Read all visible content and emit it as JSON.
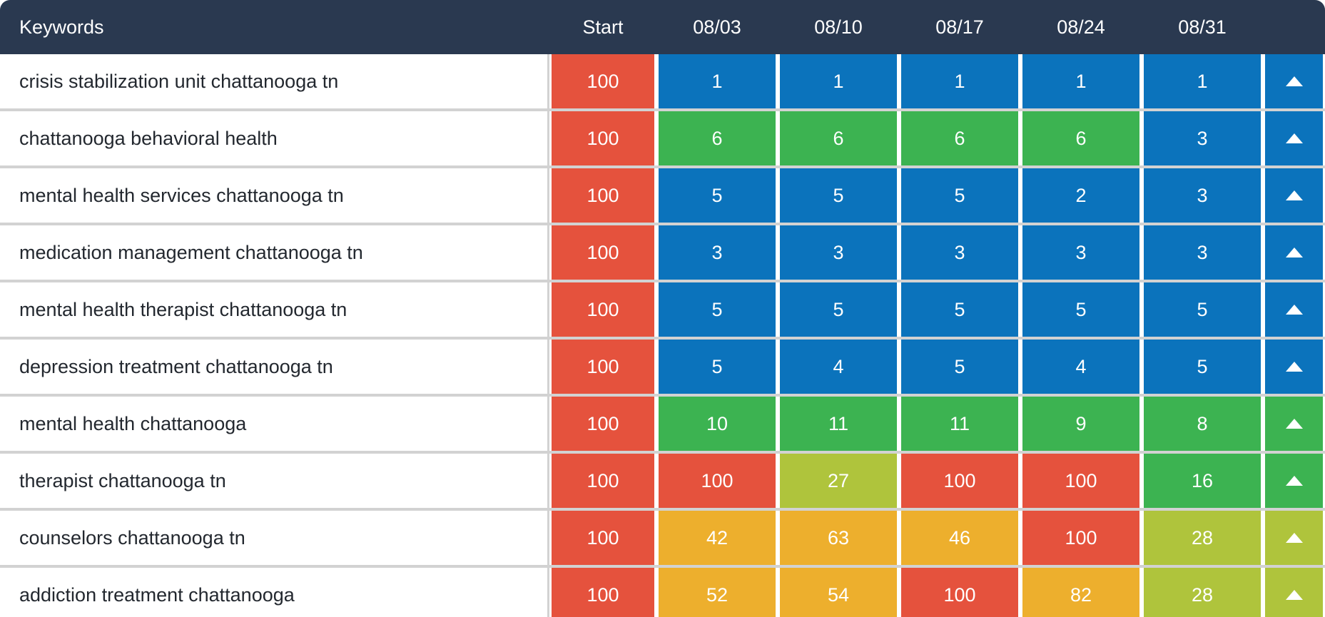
{
  "colors": {
    "navy": "#2A3950",
    "red": "#E5523D",
    "blue": "#0B73BC",
    "green": "#3CB351",
    "lime": "#AFC43C",
    "amber": "#EDAF2D",
    "separator": "#D2D2D2",
    "keyword_text": "#23282F",
    "header_text": "#FFFFFF"
  },
  "header": {
    "keywords_label": "Keywords",
    "start_label": "Start",
    "dates": [
      "08/03",
      "08/10",
      "08/17",
      "08/24",
      "08/31"
    ]
  },
  "rows": [
    {
      "keyword": "crisis stabilization unit chattanooga tn",
      "start": {
        "value": "100",
        "color": "red"
      },
      "ranks": [
        {
          "value": "1",
          "color": "blue"
        },
        {
          "value": "1",
          "color": "blue"
        },
        {
          "value": "1",
          "color": "blue"
        },
        {
          "value": "1",
          "color": "blue"
        },
        {
          "value": "1",
          "color": "blue"
        }
      ],
      "trend": {
        "direction": "up",
        "color": "blue"
      }
    },
    {
      "keyword": "chattanooga behavioral health",
      "start": {
        "value": "100",
        "color": "red"
      },
      "ranks": [
        {
          "value": "6",
          "color": "green"
        },
        {
          "value": "6",
          "color": "green"
        },
        {
          "value": "6",
          "color": "green"
        },
        {
          "value": "6",
          "color": "green"
        },
        {
          "value": "3",
          "color": "blue"
        }
      ],
      "trend": {
        "direction": "up",
        "color": "blue"
      }
    },
    {
      "keyword": "mental health services chattanooga tn",
      "start": {
        "value": "100",
        "color": "red"
      },
      "ranks": [
        {
          "value": "5",
          "color": "blue"
        },
        {
          "value": "5",
          "color": "blue"
        },
        {
          "value": "5",
          "color": "blue"
        },
        {
          "value": "2",
          "color": "blue"
        },
        {
          "value": "3",
          "color": "blue"
        }
      ],
      "trend": {
        "direction": "up",
        "color": "blue"
      }
    },
    {
      "keyword": "medication management chattanooga tn",
      "start": {
        "value": "100",
        "color": "red"
      },
      "ranks": [
        {
          "value": "3",
          "color": "blue"
        },
        {
          "value": "3",
          "color": "blue"
        },
        {
          "value": "3",
          "color": "blue"
        },
        {
          "value": "3",
          "color": "blue"
        },
        {
          "value": "3",
          "color": "blue"
        }
      ],
      "trend": {
        "direction": "up",
        "color": "blue"
      }
    },
    {
      "keyword": "mental health therapist chattanooga tn",
      "start": {
        "value": "100",
        "color": "red"
      },
      "ranks": [
        {
          "value": "5",
          "color": "blue"
        },
        {
          "value": "5",
          "color": "blue"
        },
        {
          "value": "5",
          "color": "blue"
        },
        {
          "value": "5",
          "color": "blue"
        },
        {
          "value": "5",
          "color": "blue"
        }
      ],
      "trend": {
        "direction": "up",
        "color": "blue"
      }
    },
    {
      "keyword": "depression treatment chattanooga tn",
      "start": {
        "value": "100",
        "color": "red"
      },
      "ranks": [
        {
          "value": "5",
          "color": "blue"
        },
        {
          "value": "4",
          "color": "blue"
        },
        {
          "value": "5",
          "color": "blue"
        },
        {
          "value": "4",
          "color": "blue"
        },
        {
          "value": "5",
          "color": "blue"
        }
      ],
      "trend": {
        "direction": "up",
        "color": "blue"
      }
    },
    {
      "keyword": "mental health chattanooga",
      "start": {
        "value": "100",
        "color": "red"
      },
      "ranks": [
        {
          "value": "10",
          "color": "green"
        },
        {
          "value": "11",
          "color": "green"
        },
        {
          "value": "11",
          "color": "green"
        },
        {
          "value": "9",
          "color": "green"
        },
        {
          "value": "8",
          "color": "green"
        }
      ],
      "trend": {
        "direction": "up",
        "color": "green"
      }
    },
    {
      "keyword": "therapist chattanooga tn",
      "start": {
        "value": "100",
        "color": "red"
      },
      "ranks": [
        {
          "value": "100",
          "color": "red"
        },
        {
          "value": "27",
          "color": "lime"
        },
        {
          "value": "100",
          "color": "red"
        },
        {
          "value": "100",
          "color": "red"
        },
        {
          "value": "16",
          "color": "green"
        }
      ],
      "trend": {
        "direction": "up",
        "color": "green"
      }
    },
    {
      "keyword": "counselors chattanooga tn",
      "start": {
        "value": "100",
        "color": "red"
      },
      "ranks": [
        {
          "value": "42",
          "color": "amber"
        },
        {
          "value": "63",
          "color": "amber"
        },
        {
          "value": "46",
          "color": "amber"
        },
        {
          "value": "100",
          "color": "red"
        },
        {
          "value": "28",
          "color": "lime"
        }
      ],
      "trend": {
        "direction": "up",
        "color": "lime"
      }
    },
    {
      "keyword": "addiction treatment chattanooga",
      "start": {
        "value": "100",
        "color": "red"
      },
      "ranks": [
        {
          "value": "52",
          "color": "amber"
        },
        {
          "value": "54",
          "color": "amber"
        },
        {
          "value": "100",
          "color": "red"
        },
        {
          "value": "82",
          "color": "amber"
        },
        {
          "value": "28",
          "color": "lime"
        }
      ],
      "trend": {
        "direction": "up",
        "color": "lime"
      }
    }
  ]
}
